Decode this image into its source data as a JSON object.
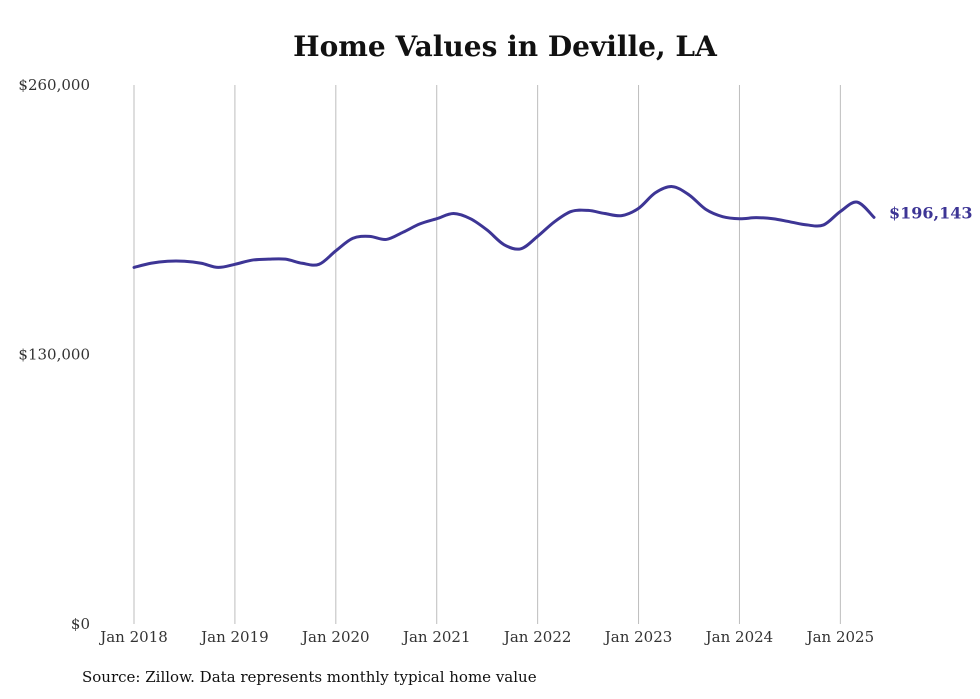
{
  "chart_data": {
    "type": "line",
    "title": "Home Values in Deville, LA",
    "xlabel": "",
    "ylabel": "",
    "ylim": [
      0,
      260000
    ],
    "y_ticks": [
      "$0",
      "$130,000",
      "$260,000"
    ],
    "y_tick_values": [
      0,
      130000,
      260000
    ],
    "x_ticks": [
      "Jan 2018",
      "Jan 2019",
      "Jan 2020",
      "Jan 2021",
      "Jan 2022",
      "Jan 2023",
      "Jan 2024",
      "Jan 2025"
    ],
    "x_tick_values": [
      "2018-01",
      "2019-01",
      "2020-01",
      "2021-01",
      "2022-01",
      "2023-01",
      "2024-01",
      "2025-01"
    ],
    "grid": "vertical",
    "line_color": "#3d3595",
    "end_label": "$196,143",
    "series": [
      {
        "x": [
          "2018-01",
          "2018-03",
          "2018-05",
          "2018-07",
          "2018-09",
          "2018-11",
          "2019-01",
          "2019-03",
          "2019-05",
          "2019-07",
          "2019-09",
          "2019-11",
          "2020-01",
          "2020-03",
          "2020-05",
          "2020-07",
          "2020-09",
          "2020-11",
          "2021-01",
          "2021-03",
          "2021-05",
          "2021-07",
          "2021-09",
          "2021-11",
          "2022-01",
          "2022-03",
          "2022-05",
          "2022-07",
          "2022-09",
          "2022-11",
          "2023-01",
          "2023-03",
          "2023-05",
          "2023-07",
          "2023-09",
          "2023-11",
          "2024-01",
          "2024-03",
          "2024-05",
          "2024-07",
          "2024-09",
          "2024-11",
          "2025-01",
          "2025-03",
          "2025-05"
        ],
        "values": [
          172000,
          174000,
          175000,
          175000,
          174000,
          172000,
          173500,
          175500,
          176000,
          176000,
          174000,
          173500,
          180000,
          186000,
          187000,
          185500,
          189000,
          193000,
          195500,
          198000,
          195500,
          190000,
          183000,
          181000,
          187000,
          194000,
          199000,
          199500,
          198000,
          197000,
          200500,
          208000,
          211000,
          207000,
          200000,
          196500,
          195500,
          196000,
          195500,
          194000,
          192500,
          192500,
          199000,
          203500,
          196143
        ]
      }
    ]
  },
  "source": "Source: Zillow. Data represents monthly typical home value"
}
